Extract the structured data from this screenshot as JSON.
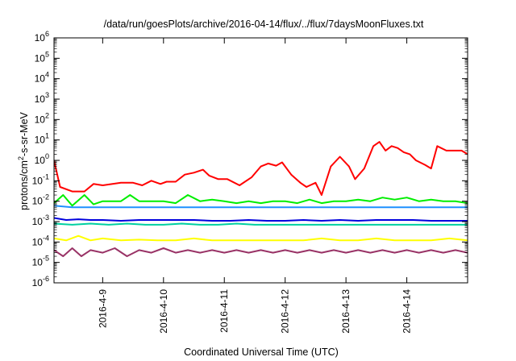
{
  "chart_data": {
    "type": "line",
    "title": "/data/run/goesPlots/archive/2016-04-14/flux/../flux/7daysMoonFluxes.txt",
    "xlabel": "Coordinated Universal Time (UTC)",
    "ylabel_parts": [
      "protons/cm",
      "2",
      "-s-sr-MeV"
    ],
    "y_scale": "log",
    "ylim_exponents": [
      -6,
      6
    ],
    "xlim_days": [
      8.2,
      15.0
    ],
    "x_ticks": [
      {
        "day": 9,
        "label": "2016-4-9"
      },
      {
        "day": 10,
        "label": "2016-4-10"
      },
      {
        "day": 11,
        "label": "2016-4-11"
      },
      {
        "day": 12,
        "label": "2016-4-12"
      },
      {
        "day": 13,
        "label": "2016-4-13"
      },
      {
        "day": 14,
        "label": "2016-4-14"
      }
    ],
    "series": [
      {
        "color": "#ff0000",
        "points": [
          [
            8.2,
            1
          ],
          [
            8.3,
            0.05
          ],
          [
            8.5,
            0.03
          ],
          [
            8.7,
            0.03
          ],
          [
            8.85,
            0.07
          ],
          [
            9.0,
            0.06
          ],
          [
            9.3,
            0.08
          ],
          [
            9.5,
            0.08
          ],
          [
            9.65,
            0.06
          ],
          [
            9.8,
            0.1
          ],
          [
            9.95,
            0.07
          ],
          [
            10.05,
            0.09
          ],
          [
            10.2,
            0.09
          ],
          [
            10.35,
            0.2
          ],
          [
            10.5,
            0.25
          ],
          [
            10.65,
            0.35
          ],
          [
            10.75,
            0.18
          ],
          [
            10.9,
            0.12
          ],
          [
            11.05,
            0.12
          ],
          [
            11.25,
            0.06
          ],
          [
            11.45,
            0.15
          ],
          [
            11.6,
            0.5
          ],
          [
            11.72,
            0.7
          ],
          [
            11.85,
            0.55
          ],
          [
            11.95,
            0.8
          ],
          [
            12.1,
            0.2
          ],
          [
            12.25,
            0.08
          ],
          [
            12.35,
            0.05
          ],
          [
            12.5,
            0.08
          ],
          [
            12.6,
            0.02
          ],
          [
            12.75,
            0.5
          ],
          [
            12.9,
            1.5
          ],
          [
            13.05,
            0.5
          ],
          [
            13.15,
            0.12
          ],
          [
            13.3,
            0.4
          ],
          [
            13.45,
            5
          ],
          [
            13.55,
            8
          ],
          [
            13.65,
            3
          ],
          [
            13.75,
            5
          ],
          [
            13.85,
            4
          ],
          [
            13.95,
            2.5
          ],
          [
            14.05,
            2
          ],
          [
            14.15,
            1
          ],
          [
            14.3,
            0.6
          ],
          [
            14.4,
            0.4
          ],
          [
            14.5,
            5
          ],
          [
            14.65,
            3
          ],
          [
            14.8,
            3
          ],
          [
            14.9,
            3
          ],
          [
            15.0,
            2
          ]
        ]
      },
      {
        "color": "#00ee00",
        "points": [
          [
            8.2,
            0.008
          ],
          [
            8.35,
            0.02
          ],
          [
            8.5,
            0.006
          ],
          [
            8.7,
            0.02
          ],
          [
            8.85,
            0.007
          ],
          [
            9.0,
            0.01
          ],
          [
            9.3,
            0.01
          ],
          [
            9.45,
            0.02
          ],
          [
            9.6,
            0.01
          ],
          [
            9.8,
            0.01
          ],
          [
            10.0,
            0.01
          ],
          [
            10.2,
            0.008
          ],
          [
            10.4,
            0.02
          ],
          [
            10.6,
            0.01
          ],
          [
            10.8,
            0.012
          ],
          [
            11.0,
            0.01
          ],
          [
            11.2,
            0.008
          ],
          [
            11.4,
            0.01
          ],
          [
            11.6,
            0.008
          ],
          [
            11.8,
            0.01
          ],
          [
            12.0,
            0.01
          ],
          [
            12.2,
            0.008
          ],
          [
            12.4,
            0.012
          ],
          [
            12.6,
            0.008
          ],
          [
            12.8,
            0.01
          ],
          [
            13.0,
            0.01
          ],
          [
            13.2,
            0.012
          ],
          [
            13.4,
            0.01
          ],
          [
            13.6,
            0.015
          ],
          [
            13.8,
            0.012
          ],
          [
            14.0,
            0.015
          ],
          [
            14.2,
            0.01
          ],
          [
            14.4,
            0.012
          ],
          [
            14.6,
            0.01
          ],
          [
            14.8,
            0.01
          ],
          [
            15.0,
            0.008
          ]
        ]
      },
      {
        "color": "#1e90ff",
        "points": [
          [
            8.2,
            0.006
          ],
          [
            8.5,
            0.005
          ],
          [
            8.8,
            0.005
          ],
          [
            9.1,
            0.005
          ],
          [
            9.5,
            0.005
          ],
          [
            9.9,
            0.005
          ],
          [
            10.3,
            0.005
          ],
          [
            10.7,
            0.005
          ],
          [
            11.1,
            0.005
          ],
          [
            11.5,
            0.005
          ],
          [
            11.9,
            0.005
          ],
          [
            12.3,
            0.005
          ],
          [
            12.7,
            0.005
          ],
          [
            13.1,
            0.005
          ],
          [
            13.5,
            0.005
          ],
          [
            13.9,
            0.005
          ],
          [
            14.3,
            0.005
          ],
          [
            14.7,
            0.005
          ],
          [
            15.0,
            0.005
          ]
        ]
      },
      {
        "color": "#0000dd",
        "points": [
          [
            8.2,
            0.0015
          ],
          [
            8.4,
            0.0012
          ],
          [
            8.6,
            0.0013
          ],
          [
            8.8,
            0.0012
          ],
          [
            9.0,
            0.0012
          ],
          [
            9.3,
            0.0011
          ],
          [
            9.6,
            0.0012
          ],
          [
            9.9,
            0.0012
          ],
          [
            10.2,
            0.0012
          ],
          [
            10.5,
            0.0012
          ],
          [
            10.8,
            0.0011
          ],
          [
            11.1,
            0.0011
          ],
          [
            11.4,
            0.0012
          ],
          [
            11.7,
            0.0011
          ],
          [
            12.0,
            0.0011
          ],
          [
            12.3,
            0.0012
          ],
          [
            12.6,
            0.0011
          ],
          [
            12.9,
            0.0012
          ],
          [
            13.2,
            0.0011
          ],
          [
            13.5,
            0.0012
          ],
          [
            13.8,
            0.0012
          ],
          [
            14.1,
            0.0012
          ],
          [
            14.4,
            0.0011
          ],
          [
            14.7,
            0.0011
          ],
          [
            15.0,
            0.0011
          ]
        ]
      },
      {
        "color": "#00d0a0",
        "points": [
          [
            8.2,
            0.0008
          ],
          [
            8.5,
            0.0007
          ],
          [
            8.8,
            0.0008
          ],
          [
            9.1,
            0.0007
          ],
          [
            9.4,
            0.0008
          ],
          [
            9.7,
            0.0007
          ],
          [
            10.0,
            0.0007
          ],
          [
            10.3,
            0.0008
          ],
          [
            10.6,
            0.0007
          ],
          [
            10.9,
            0.0007
          ],
          [
            11.2,
            0.0008
          ],
          [
            11.5,
            0.0007
          ],
          [
            11.8,
            0.0007
          ],
          [
            12.1,
            0.0007
          ],
          [
            12.4,
            0.0007
          ],
          [
            12.7,
            0.0007
          ],
          [
            13.0,
            0.0007
          ],
          [
            13.3,
            0.0007
          ],
          [
            13.6,
            0.0007
          ],
          [
            13.9,
            0.0007
          ],
          [
            14.2,
            0.0007
          ],
          [
            14.5,
            0.0007
          ],
          [
            14.8,
            0.0007
          ],
          [
            15.0,
            0.0007
          ]
        ]
      },
      {
        "color": "#ffff00",
        "points": [
          [
            8.2,
            0.00015
          ],
          [
            8.4,
            0.00012
          ],
          [
            8.6,
            0.0002
          ],
          [
            8.8,
            0.00012
          ],
          [
            9.0,
            0.00015
          ],
          [
            9.3,
            0.00012
          ],
          [
            9.6,
            0.00013
          ],
          [
            9.9,
            0.00012
          ],
          [
            10.2,
            0.00012
          ],
          [
            10.5,
            0.00015
          ],
          [
            10.8,
            0.00012
          ],
          [
            11.1,
            0.00012
          ],
          [
            11.4,
            0.00012
          ],
          [
            11.7,
            0.00012
          ],
          [
            12.0,
            0.00012
          ],
          [
            12.3,
            0.00012
          ],
          [
            12.6,
            0.00015
          ],
          [
            12.9,
            0.00012
          ],
          [
            13.2,
            0.00012
          ],
          [
            13.5,
            0.00015
          ],
          [
            13.8,
            0.00012
          ],
          [
            14.1,
            0.00012
          ],
          [
            14.4,
            0.00012
          ],
          [
            14.7,
            0.00015
          ],
          [
            15.0,
            0.00012
          ]
        ]
      },
      {
        "color": "#993366",
        "points": [
          [
            8.2,
            4e-05
          ],
          [
            8.35,
            2e-05
          ],
          [
            8.5,
            5e-05
          ],
          [
            8.65,
            2e-05
          ],
          [
            8.8,
            4e-05
          ],
          [
            9.0,
            3e-05
          ],
          [
            9.2,
            5e-05
          ],
          [
            9.4,
            2e-05
          ],
          [
            9.6,
            4e-05
          ],
          [
            9.8,
            3e-05
          ],
          [
            10.0,
            5e-05
          ],
          [
            10.2,
            3e-05
          ],
          [
            10.4,
            4e-05
          ],
          [
            10.6,
            3e-05
          ],
          [
            10.8,
            4e-05
          ],
          [
            11.0,
            3e-05
          ],
          [
            11.2,
            4e-05
          ],
          [
            11.4,
            3e-05
          ],
          [
            11.6,
            4e-05
          ],
          [
            11.8,
            3e-05
          ],
          [
            12.0,
            4e-05
          ],
          [
            12.2,
            3e-05
          ],
          [
            12.4,
            4e-05
          ],
          [
            12.6,
            3e-05
          ],
          [
            12.8,
            4e-05
          ],
          [
            13.0,
            3e-05
          ],
          [
            13.2,
            4e-05
          ],
          [
            13.4,
            3e-05
          ],
          [
            13.6,
            4e-05
          ],
          [
            13.8,
            3e-05
          ],
          [
            14.0,
            4e-05
          ],
          [
            14.2,
            3e-05
          ],
          [
            14.4,
            4e-05
          ],
          [
            14.6,
            3e-05
          ],
          [
            14.8,
            4e-05
          ],
          [
            15.0,
            3e-05
          ]
        ]
      }
    ]
  }
}
